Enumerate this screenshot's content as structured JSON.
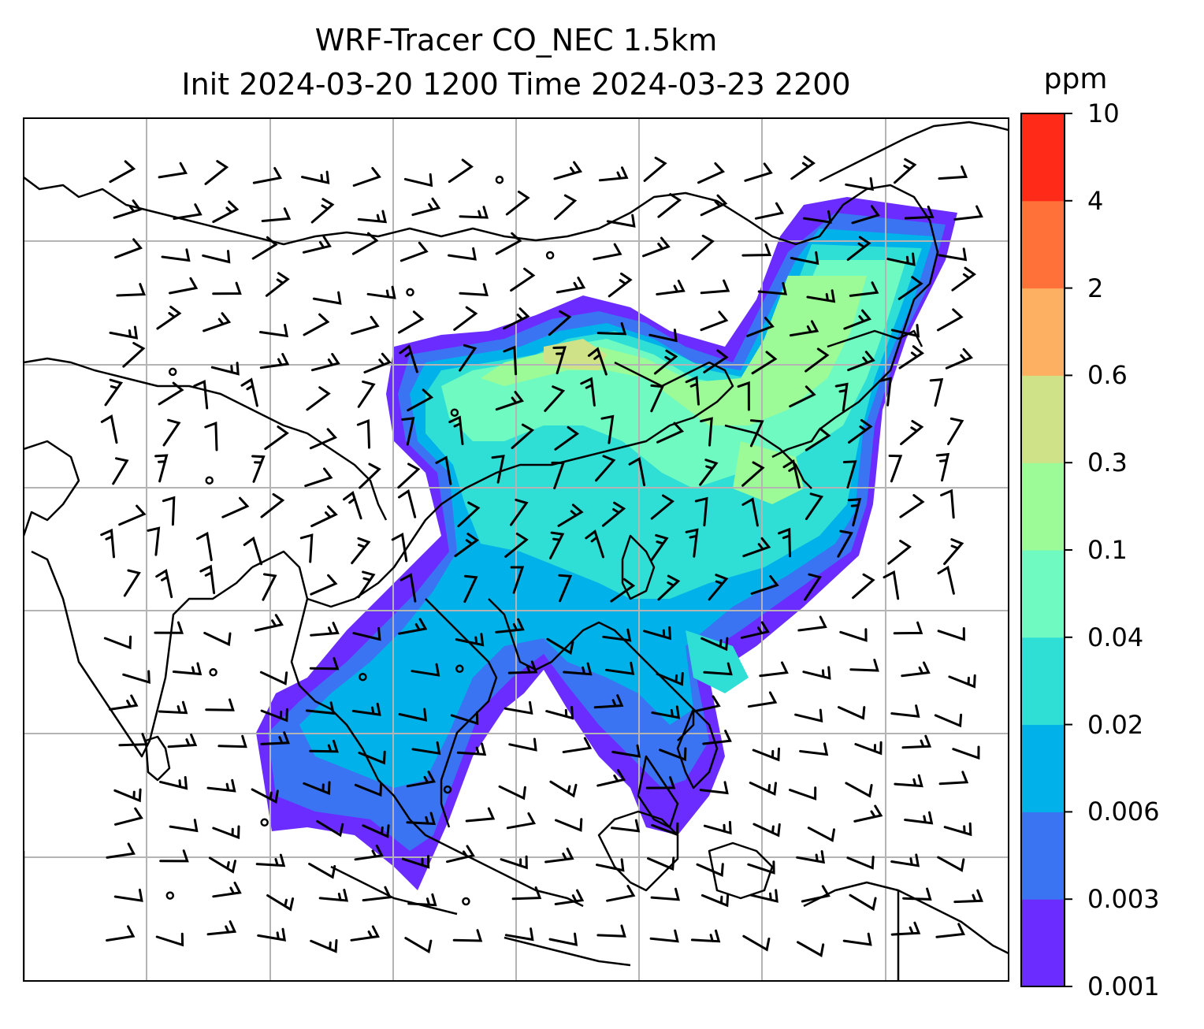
{
  "title": {
    "line1": "WRF-Tracer CO_NEC 1.5km",
    "line2": "Init 2024-03-20 1200 Time 2024-03-23 2200"
  },
  "map": {
    "projection": "lat-lon",
    "gridlines": true,
    "coastlines": true,
    "overlay": "wind barbs",
    "field": "CO_NEC tracer concentration at 1.5km"
  },
  "colorbar": {
    "unit": "ppm",
    "levels": [
      "0.001",
      "0.003",
      "0.006",
      "0.02",
      "0.04",
      "0.1",
      "0.3",
      "0.6",
      "2",
      "4",
      "10"
    ],
    "colors": [
      "#6a2cff",
      "#3a74f2",
      "#00b2e9",
      "#2fdfd6",
      "#6efac0",
      "#9cfb96",
      "#cfe287",
      "#fdaf62",
      "#ff7139",
      "#ff2a18"
    ]
  }
}
